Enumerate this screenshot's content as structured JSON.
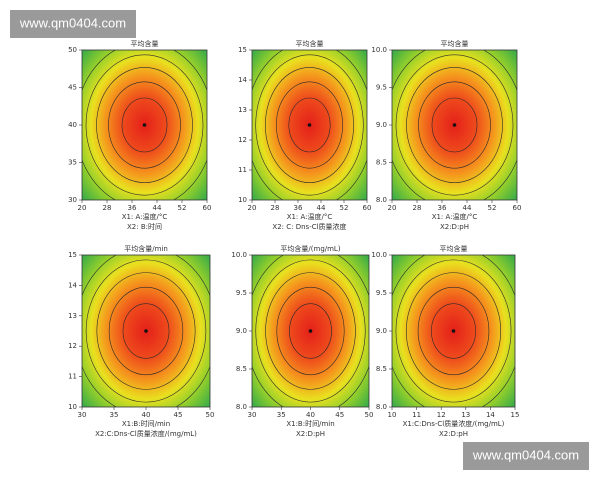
{
  "watermark": [
    "www.qm0404.com",
    "www.qm0404.com"
  ],
  "chart_data": [
    {
      "type": "contour",
      "title": "平均含量",
      "xlabel": "X1: A:温度/°C",
      "ylabel": "X2: B:时间",
      "xlim": [
        20,
        60
      ],
      "xticks": [
        20,
        28,
        36,
        44,
        52,
        60
      ],
      "ylim": [
        30,
        50
      ],
      "yticks": [
        30,
        35,
        40,
        45,
        50
      ],
      "center": {
        "x": 40,
        "y": 40
      }
    },
    {
      "type": "contour",
      "title": "平均含量",
      "xlabel": "X1: A:温度/°C",
      "ylabel": "X2: C: Dns-Cl质量浓度",
      "xlim": [
        20,
        60
      ],
      "xticks": [
        20,
        28,
        36,
        44,
        52,
        60
      ],
      "ylim": [
        10,
        15
      ],
      "yticks": [
        10,
        11,
        12,
        13,
        14,
        15
      ],
      "center": {
        "x": 40,
        "y": 12.5
      }
    },
    {
      "type": "contour",
      "title": "平均含量",
      "xlabel": "X1: A:温度/°C",
      "ylabel": "X2:D:pH",
      "xlim": [
        20,
        60
      ],
      "xticks": [
        20,
        28,
        36,
        44,
        52,
        60
      ],
      "ylim": [
        8,
        10
      ],
      "yticks": [
        {
          "value": 8,
          "label": "8.0"
        },
        8.5,
        {
          "value": 9,
          "label": "9.0"
        },
        9.5,
        {
          "value": 10,
          "label": "10.0"
        }
      ],
      "center": {
        "x": 40,
        "y": 9
      }
    },
    {
      "type": "contour",
      "title": "平均含量/min",
      "xlabel": "X1:B:时间/min",
      "ylabel": "X2:C:Dns-Cl质量浓度/(mg/mL)",
      "xlim": [
        30,
        50
      ],
      "xticks": [
        30,
        35,
        40,
        45,
        50
      ],
      "ylim": [
        10,
        15
      ],
      "yticks": [
        10,
        11,
        12,
        13,
        14,
        15
      ],
      "center": {
        "x": 40,
        "y": 12.5
      }
    },
    {
      "type": "contour",
      "title": "平均含量/(mg/mL)",
      "xlabel": "X1:B:时间/min",
      "ylabel": "X2:D:pH",
      "xlim": [
        30,
        50
      ],
      "xticks": [
        30,
        35,
        40,
        45,
        50
      ],
      "ylim": [
        8,
        10
      ],
      "yticks": [
        {
          "value": 8,
          "label": "8.0"
        },
        8.5,
        {
          "value": 9,
          "label": "9.0"
        },
        9.5,
        {
          "value": 10,
          "label": "10.0"
        }
      ],
      "center": {
        "x": 40,
        "y": 9
      }
    },
    {
      "type": "contour",
      "title": "平均含量",
      "xlabel": "X1:C:Dns-Cl质量浓度/(mg/mL)",
      "ylabel": "X2:D:pH",
      "xlim": [
        10,
        15
      ],
      "xticks": [
        10,
        11,
        12,
        13,
        14,
        15
      ],
      "ylim": [
        8,
        10
      ],
      "yticks": [
        {
          "value": 8,
          "label": "8.0"
        },
        8.5,
        {
          "value": 9,
          "label": "9.0"
        },
        9.5,
        {
          "value": 10,
          "label": "10.0"
        }
      ],
      "center": {
        "x": 12.5,
        "y": 9
      }
    }
  ]
}
